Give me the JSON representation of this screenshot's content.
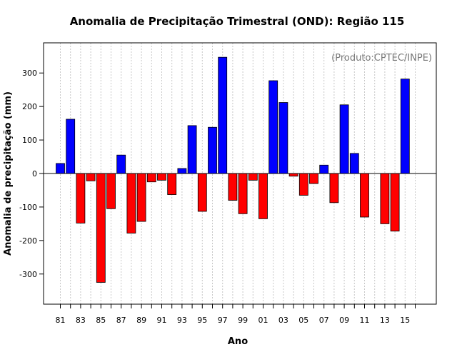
{
  "chart_data": {
    "type": "bar",
    "title": "Anomalia de Precipitação Trimestral (OND): Região 115",
    "xlabel": "Ano",
    "ylabel": "Anomalia de precipitação (mm)",
    "annotation": "(Produto:CPTEC/INPE)",
    "ylim": [
      -390,
      390
    ],
    "yticks": [
      -300,
      -200,
      -100,
      0,
      100,
      200,
      300
    ],
    "categories": [
      "81",
      "82",
      "83",
      "84",
      "85",
      "86",
      "87",
      "88",
      "89",
      "90",
      "91",
      "92",
      "93",
      "94",
      "95",
      "96",
      "97",
      "98",
      "99",
      "00",
      "01",
      "02",
      "03",
      "04",
      "05",
      "06",
      "07",
      "08",
      "09",
      "10",
      "11",
      "12",
      "13",
      "14",
      "15",
      "16"
    ],
    "xtick_labels": [
      "81",
      "83",
      "85",
      "87",
      "89",
      "91",
      "93",
      "95",
      "97",
      "99",
      "01",
      "03",
      "05",
      "07",
      "09",
      "11",
      "13",
      "15"
    ],
    "values": [
      30,
      162,
      -148,
      -22,
      -325,
      -105,
      55,
      -178,
      -143,
      -25,
      -20,
      -63,
      15,
      143,
      -113,
      138,
      347,
      -80,
      -120,
      -20,
      -135,
      277,
      212,
      -8,
      -65,
      -30,
      25,
      -87,
      205,
      60,
      -130,
      0,
      -150,
      -172,
      282,
      null
    ],
    "grid": true,
    "colors": {
      "positive": "#0000ff",
      "negative": "#ff0000",
      "grid": "#c8c8c8",
      "axis": "#000000",
      "annotation": "#777777"
    }
  }
}
